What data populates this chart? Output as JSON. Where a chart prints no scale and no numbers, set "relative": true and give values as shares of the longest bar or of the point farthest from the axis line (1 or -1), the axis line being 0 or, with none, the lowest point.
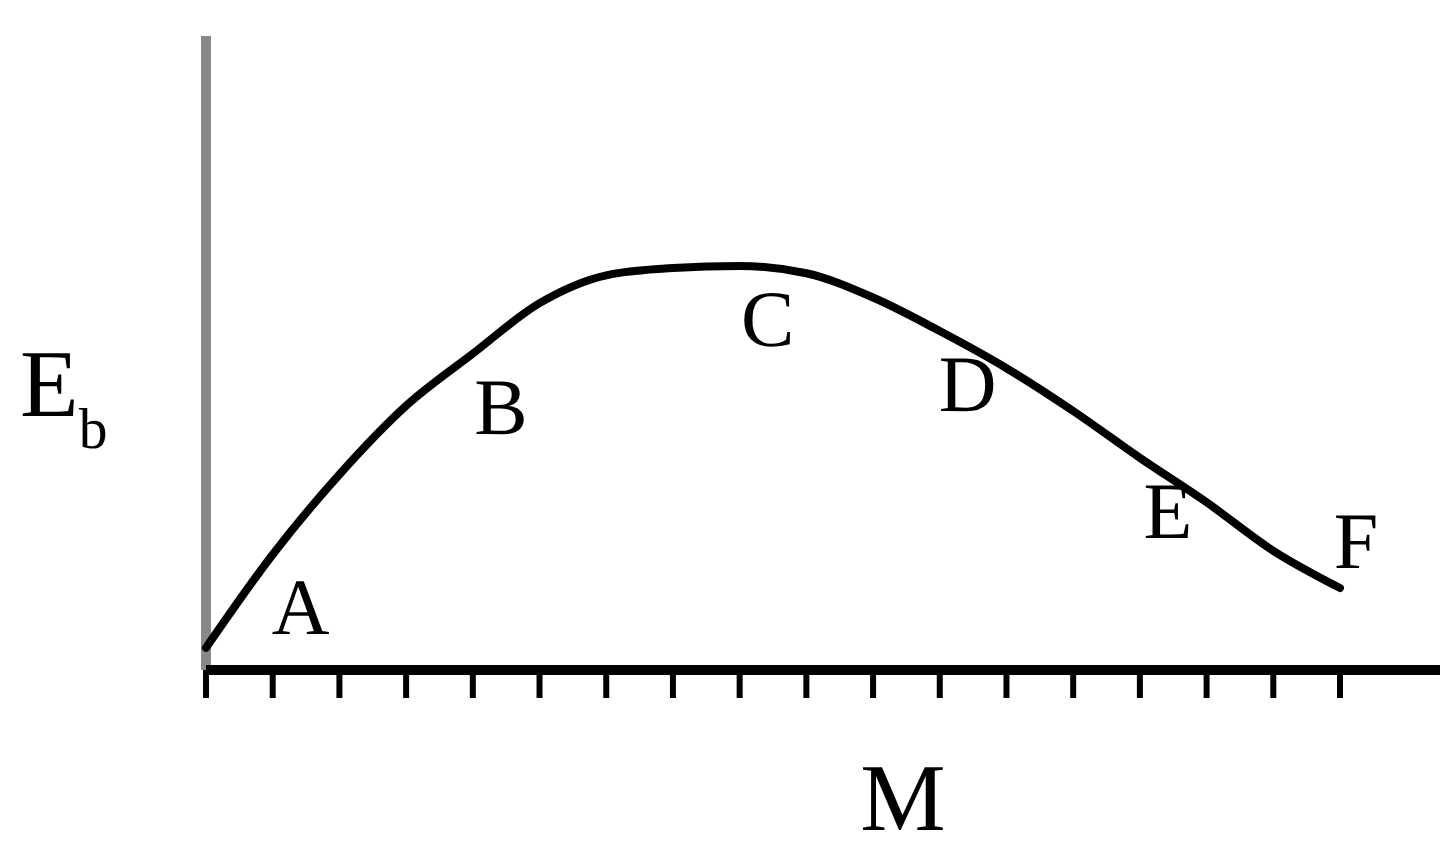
{
  "chart_data": {
    "type": "line",
    "relative": true,
    "xlabel": "M",
    "ylabel": "E$_{b}$",
    "categories": [
      null,
      null,
      null,
      null,
      null,
      null,
      null,
      null,
      null,
      null,
      null,
      null,
      null,
      null,
      null,
      null,
      null,
      null
    ],
    "series": [
      {
        "color": "#000000",
        "values": [
          0.055,
          0.286,
          0.484,
          0.654,
          0.783,
          0.908,
          0.977,
          0.995,
          1,
          0.982,
          0.922,
          0.839,
          0.747,
          0.641,
          0.525,
          0.415,
          0.295,
          0.203
        ]
      }
    ],
    "annotations": [
      "A",
      "B",
      "C",
      "D",
      "E",
      "F"
    ],
    "marker": "none",
    "grid": false
  }
}
